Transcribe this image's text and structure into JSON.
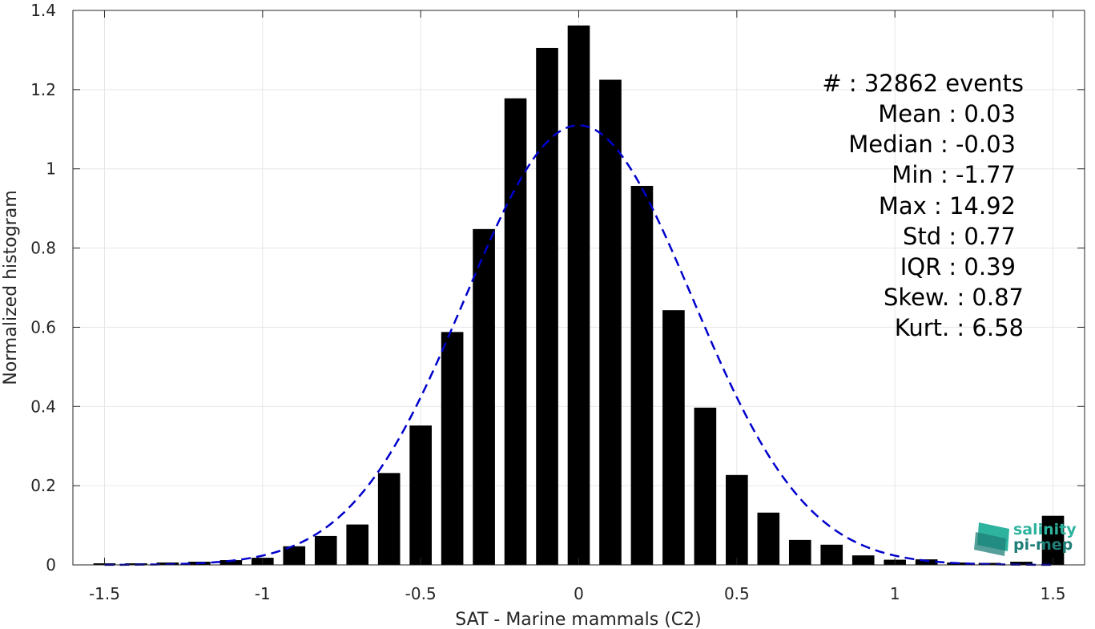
{
  "chart_data": {
    "type": "bar",
    "xlabel": "SAT - Marine mammals (C2)",
    "ylabel": "Normalized histogram",
    "xlim": [
      -1.6,
      1.6
    ],
    "ylim": [
      0,
      1.4
    ],
    "xticks": [
      -1.5,
      -1,
      -0.5,
      0,
      0.5,
      1,
      1.5
    ],
    "xtick_labels": [
      "-1.5",
      "-1",
      "-0.5",
      "0",
      "0.5",
      "1",
      "1.5"
    ],
    "yticks": [
      0,
      0.2,
      0.4,
      0.6,
      0.8,
      1,
      1.2,
      1.4
    ],
    "ytick_labels": [
      "0",
      "0.2",
      "0.4",
      "0.6",
      "0.8",
      "1",
      "1.2",
      "1.4"
    ],
    "grid": true,
    "bar_color": "#000000",
    "bar_width": 0.07,
    "x": [
      -1.5,
      -1.4,
      -1.3,
      -1.2,
      -1.1,
      -1.0,
      -0.9,
      -0.8,
      -0.7,
      -0.6,
      -0.5,
      -0.4,
      -0.3,
      -0.2,
      -0.1,
      0.0,
      0.1,
      0.2,
      0.3,
      0.4,
      0.5,
      0.6,
      0.7,
      0.8,
      0.9,
      1.0,
      1.1,
      1.2,
      1.3,
      1.4,
      1.5
    ],
    "values": [
      0.004,
      0.004,
      0.006,
      0.008,
      0.012,
      0.018,
      0.047,
      0.073,
      0.102,
      0.232,
      0.352,
      0.588,
      0.848,
      1.178,
      1.305,
      1.362,
      1.225,
      0.957,
      0.643,
      0.397,
      0.227,
      0.132,
      0.063,
      0.051,
      0.024,
      0.013,
      0.014,
      0.006,
      0.005,
      0.008,
      0.124
    ],
    "fit_curve": {
      "style": "dashed",
      "color": "#0000cc",
      "mean": 0.0,
      "std": 0.36,
      "peak": 1.11
    },
    "stats": [
      "#  : 32862 events",
      "Mean : 0.03",
      "Median : -0.03",
      "Min : -1.77",
      "Max : 14.92",
      "Std : 0.77",
      "IQR : 0.39",
      "Skew. : 0.87",
      "Kurt. : 6.58"
    ]
  },
  "logo": {
    "line1": "salinity",
    "line2": "pi-mep",
    "color1": "#2db39e",
    "color2": "#1f7f78"
  }
}
